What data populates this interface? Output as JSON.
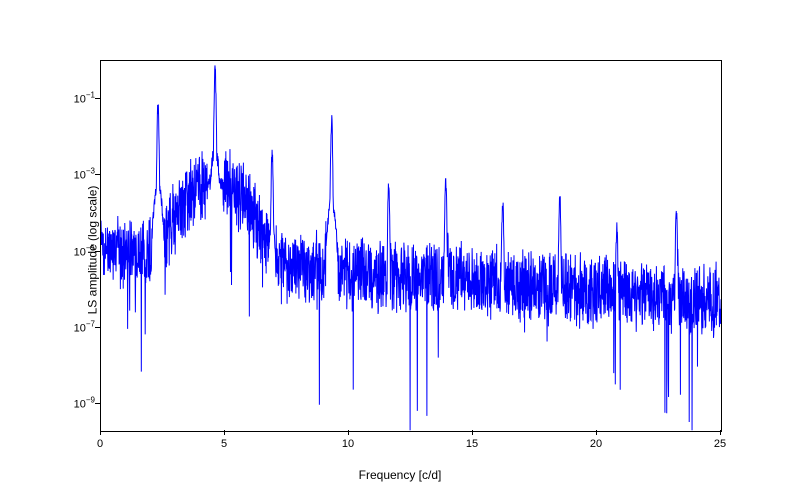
{
  "chart": {
    "type": "line",
    "xlabel": "Frequency [c/d]",
    "ylabel": "LS amplitude (log scale)",
    "xlim": [
      0,
      25
    ],
    "ylim_log": [
      -9.7,
      0
    ],
    "xtick_step": 5,
    "xticks": [
      0,
      5,
      10,
      15,
      20,
      25
    ],
    "yticks_exp": [
      -9,
      -7,
      -5,
      -3,
      -1
    ],
    "line_color": "#0000ff",
    "line_width": 1.0,
    "background_color": "#ffffff",
    "border_color": "#000000",
    "label_fontsize": 12,
    "tick_fontsize": 11,
    "peaks": [
      {
        "freq": 2.3,
        "amp_log": -1.15
      },
      {
        "freq": 4.6,
        "amp_log": -0.3
      },
      {
        "freq": 6.9,
        "amp_log": -2.4
      },
      {
        "freq": 9.3,
        "amp_log": -1.65
      },
      {
        "freq": 11.6,
        "amp_log": -3.3
      },
      {
        "freq": 13.9,
        "amp_log": -3.2
      },
      {
        "freq": 16.2,
        "amp_log": -3.7
      },
      {
        "freq": 18.5,
        "amp_log": -3.55
      },
      {
        "freq": 20.8,
        "amp_log": -4.4
      },
      {
        "freq": 23.2,
        "amp_log": -4.0
      }
    ],
    "noise_floor_start_log": -5.0,
    "noise_floor_end_log": -6.3,
    "noise_spread_log": 1.8
  }
}
